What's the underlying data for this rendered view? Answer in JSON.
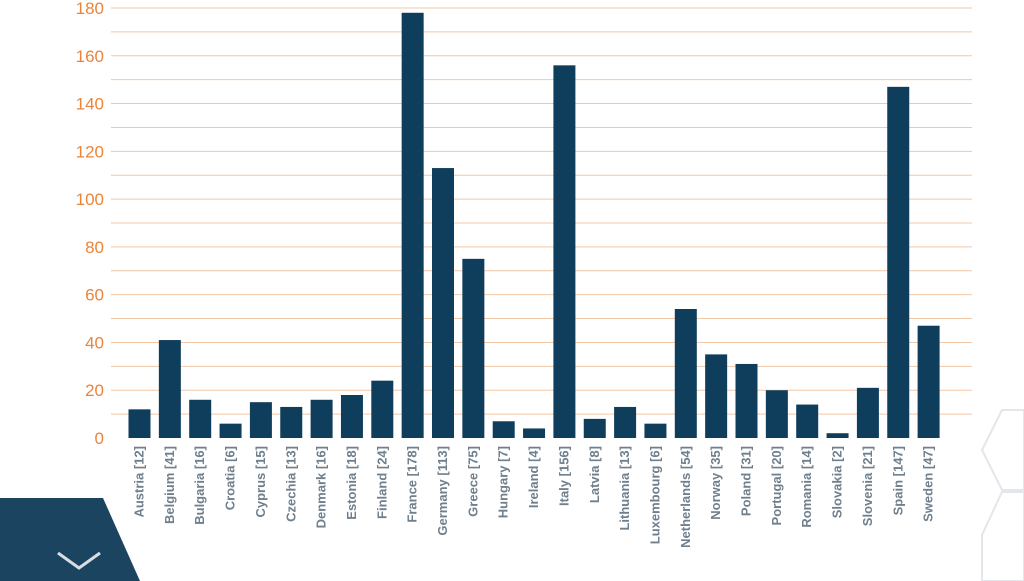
{
  "chart_data": {
    "type": "bar",
    "categories": [
      "Austria [12]",
      "Belgium [41]",
      "Bulgaria [16]",
      "Croatia [6]",
      "Cyprus [15]",
      "Czechia [13]",
      "Denmark [16]",
      "Estonia [18]",
      "Finland [24]",
      "France [178]",
      "Germany [113]",
      "Greece [75]",
      "Hungary [7]",
      "Ireland [4]",
      "Italy [156]",
      "Latvia [8]",
      "Lithuania [13]",
      "Luxembourg [6]",
      "Netherlands [54]",
      "Norway [35]",
      "Poland [31]",
      "Portugal [20]",
      "Romania [14]",
      "Slovakia [2]",
      "Slovenia [21]",
      "Spain [147]",
      "Sweden [47]"
    ],
    "values": [
      12,
      41,
      16,
      6,
      15,
      13,
      16,
      18,
      24,
      178,
      113,
      75,
      7,
      4,
      156,
      8,
      13,
      6,
      54,
      35,
      31,
      20,
      14,
      2,
      21,
      147,
      47
    ],
    "ylim": [
      0,
      180
    ],
    "yticks": [
      0,
      20,
      40,
      60,
      80,
      100,
      120,
      140,
      160,
      180
    ],
    "grid": true,
    "colors": {
      "bar": "#0f3e5c",
      "ytick": "#e9853a",
      "grid": "#f3c7a6",
      "xtick": "#6f7f8c"
    }
  }
}
